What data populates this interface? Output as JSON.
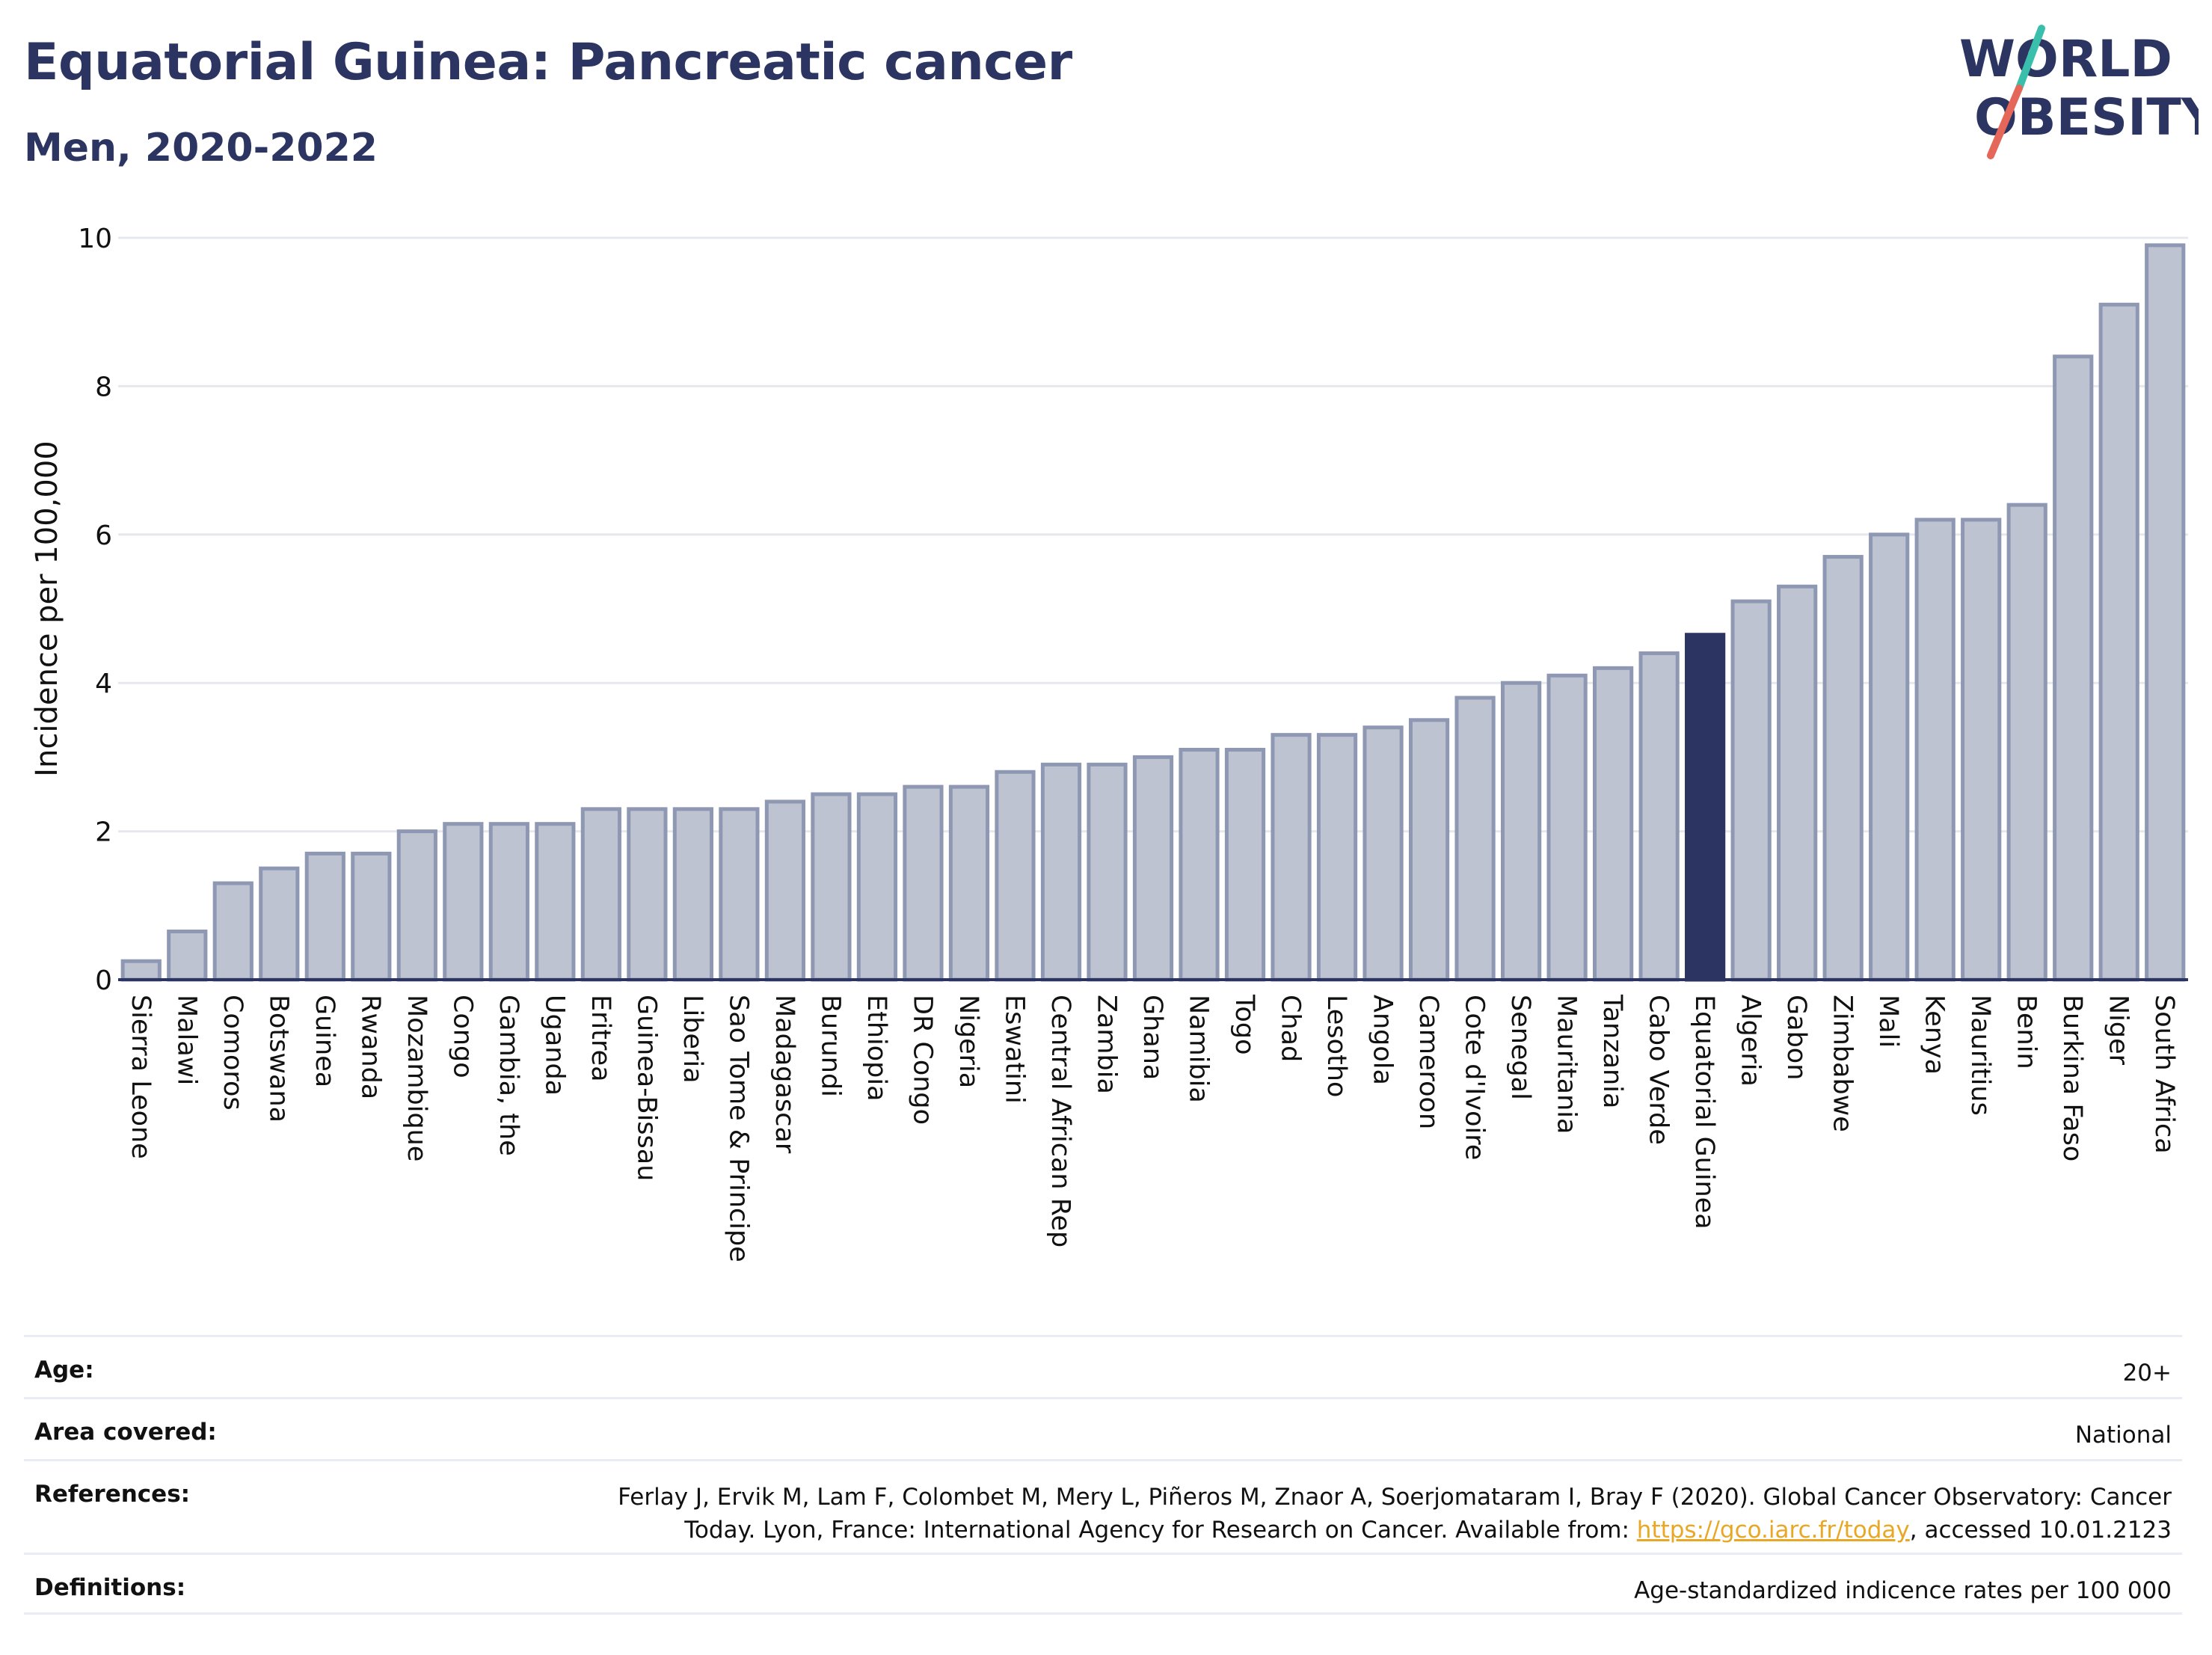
{
  "header": {
    "title": "Equatorial Guinea: Pancreatic cancer",
    "subtitle": "Men, 2020-2022"
  },
  "logo": {
    "line1": "WORLD",
    "line2": "OBESITY",
    "colors": {
      "text": "#2c3561",
      "slash_top": "#3bbfad",
      "slash_bottom": "#e5675a"
    }
  },
  "colors": {
    "bar_default": "#bec3d1",
    "bar_default_border": "#8f98b3",
    "bar_highlight": "#2c3561",
    "grid": "#e6e8ee"
  },
  "chart_data": {
    "type": "bar",
    "ylabel": "Incidence per 100,000",
    "ylim": [
      0,
      10
    ],
    "yticks": [
      0,
      2,
      4,
      6,
      8,
      10
    ],
    "grid": true,
    "highlight": "Equatorial Guinea",
    "categories": [
      "Sierra Leone",
      "Malawi",
      "Comoros",
      "Botswana",
      "Guinea",
      "Rwanda",
      "Mozambique",
      "Congo",
      "Gambia, the",
      "Uganda",
      "Eritrea",
      "Guinea-Bissau",
      "Liberia",
      "Sao Tome & Principe",
      "Madagascar",
      "Burundi",
      "Ethiopia",
      "DR Congo",
      "Nigeria",
      "Eswatini",
      "Central African Rep",
      "Zambia",
      "Ghana",
      "Namibia",
      "Togo",
      "Chad",
      "Lesotho",
      "Angola",
      "Cameroon",
      "Cote d'Ivoire",
      "Senegal",
      "Mauritania",
      "Tanzania",
      "Cabo Verde",
      "Equatorial Guinea",
      "Algeria",
      "Gabon",
      "Zimbabwe",
      "Mali",
      "Kenya",
      "Mauritius",
      "Benin",
      "Burkina Faso",
      "Niger",
      "South Africa"
    ],
    "values": [
      0.25,
      0.65,
      1.3,
      1.5,
      1.7,
      1.7,
      2.0,
      2.1,
      2.1,
      2.1,
      2.3,
      2.3,
      2.3,
      2.3,
      2.4,
      2.5,
      2.5,
      2.6,
      2.6,
      2.8,
      2.9,
      2.9,
      3.0,
      3.1,
      3.1,
      3.3,
      3.3,
      3.4,
      3.5,
      3.8,
      4.0,
      4.1,
      4.2,
      4.4,
      4.65,
      5.1,
      5.3,
      5.7,
      6.0,
      6.2,
      6.2,
      6.4,
      8.4,
      9.1,
      9.9
    ]
  },
  "meta": {
    "age_label": "Age:",
    "age_value": "20+",
    "area_label": "Area covered:",
    "area_value": "National",
    "references_label": "References:",
    "references_line1": "Ferlay J, Ervik M, Lam F, Colombet M, Mery L, Piñeros M, Znaor A, Soerjomataram I, Bray F (2020). Global Cancer Observatory: Cancer",
    "references_line2_prefix": "Today. Lyon, France: International Agency for Research on Cancer. Available from: ",
    "references_link": "https://gco.iarc.fr/today",
    "references_line2_suffix": ", accessed 10.01.2123",
    "definitions_label": "Definitions:",
    "definitions_value": "Age-standardized indicence rates per 100 000"
  }
}
